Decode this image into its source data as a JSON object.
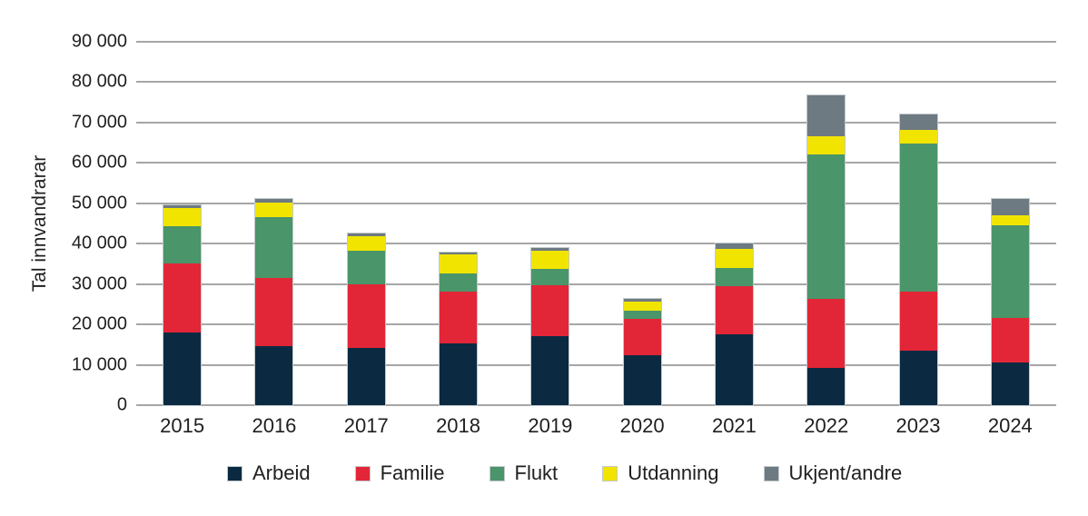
{
  "colors": {
    "arbeid": "#0b2a42",
    "familie": "#e32637",
    "flukt": "#4a9569",
    "utdanning": "#f1e400",
    "ukjent_andre": "#6d7a81",
    "gridline": "#a6a6a6",
    "bar_outline": "#c2cacd",
    "text": "#1f1f1f"
  },
  "chart_data": {
    "type": "bar",
    "stacked": true,
    "title": "",
    "xlabel": "",
    "ylabel": "Tal innvandrarar",
    "ylim": [
      0,
      90000
    ],
    "ytick_step": 10000,
    "ytick_labels": [
      "0",
      "10 000",
      "20 000",
      "30 000",
      "40 000",
      "50 000",
      "60 000",
      "70 000",
      "80 000",
      "90 000"
    ],
    "grid": true,
    "legend_position": "bottom",
    "categories": [
      "2015",
      "2016",
      "2017",
      "2018",
      "2019",
      "2020",
      "2021",
      "2022",
      "2023",
      "2024"
    ],
    "series": [
      {
        "name": "Arbeid",
        "color": "#0b2a42",
        "values": [
          18100,
          14700,
          14200,
          15300,
          17000,
          12300,
          17500,
          9300,
          13500,
          10600
        ]
      },
      {
        "name": "Familie",
        "color": "#e32637",
        "values": [
          16900,
          16700,
          15800,
          12800,
          12800,
          9000,
          12000,
          17100,
          14600,
          11000
        ]
      },
      {
        "name": "Flukt",
        "color": "#4a9569",
        "values": [
          9300,
          15200,
          8200,
          4500,
          4000,
          2200,
          4500,
          35700,
          36700,
          22900
        ]
      },
      {
        "name": "Utdanning",
        "color": "#f1e400",
        "values": [
          4600,
          3500,
          3600,
          4700,
          4400,
          2100,
          4600,
          4400,
          3400,
          2600
        ]
      },
      {
        "name": "Ukjent/andre",
        "color": "#6d7a81",
        "values": [
          600,
          1000,
          800,
          500,
          700,
          700,
          1500,
          10300,
          3700,
          3900
        ]
      }
    ],
    "totals": [
      49500,
      51100,
      42600,
      37800,
      38900,
      26300,
      40100,
      76800,
      71900,
      51000
    ]
  }
}
